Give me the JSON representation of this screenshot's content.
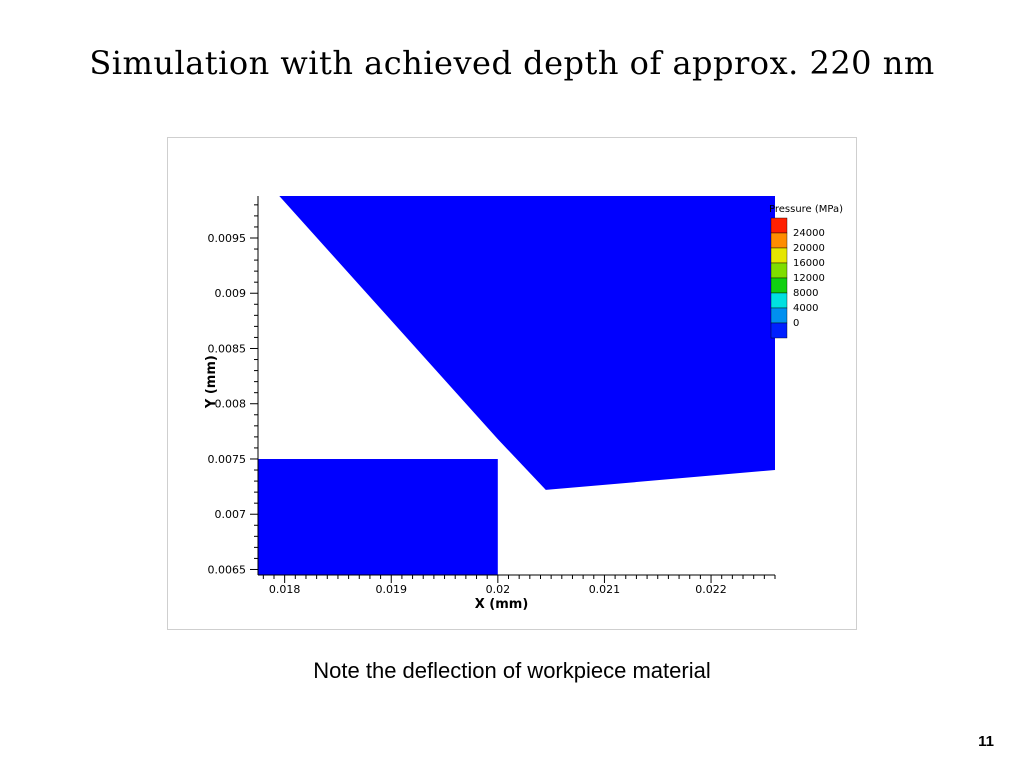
{
  "slide": {
    "title": "Simulation with achieved depth of approx. 220 nm",
    "caption": "Note the deflection of workpiece material",
    "page_number": "11"
  },
  "chart_data": {
    "type": "contour",
    "xlabel": "X (mm)",
    "ylabel": "Y (mm)",
    "xlim": [
      0.01775,
      0.0226
    ],
    "ylim": [
      0.00645,
      0.00988
    ],
    "x_ticks": [
      0.018,
      0.019,
      0.02,
      0.021,
      0.022
    ],
    "x_tick_labels": [
      "0.018",
      "0.019",
      "0.02",
      "0.021",
      "0.022"
    ],
    "y_ticks": [
      0.0065,
      0.007,
      0.0075,
      0.008,
      0.0085,
      0.009,
      0.0095
    ],
    "y_tick_labels": [
      "0.0065",
      "0.007",
      "0.0075",
      "0.008",
      "0.0085",
      "0.009",
      "0.0095"
    ],
    "legend": {
      "title": "Pressure (MPa)",
      "placement": "top-right",
      "levels": [
        {
          "label": "24000",
          "color": "#ff2000"
        },
        {
          "label": "20000",
          "color": "#ff8c00"
        },
        {
          "label": "16000",
          "color": "#e6e600"
        },
        {
          "label": "12000",
          "color": "#7fdd00"
        },
        {
          "label": "8000",
          "color": "#10d010"
        },
        {
          "label": "4000",
          "color": "#00e0e0"
        },
        {
          "label": "0",
          "color": "#0090f0"
        },
        {
          "label": "",
          "color": "#0020ff"
        }
      ]
    },
    "regions": [
      {
        "name": "tool",
        "color": "#0000ff",
        "polygon": [
          [
            0.01795,
            0.00988
          ],
          [
            0.0226,
            0.00988
          ],
          [
            0.0226,
            0.0074
          ],
          [
            0.02045,
            0.00722
          ],
          [
            0.02,
            0.00768
          ]
        ]
      },
      {
        "name": "workpiece",
        "color": "#0000ff",
        "polygon": [
          [
            0.01775,
            0.0075
          ],
          [
            0.02,
            0.0075
          ],
          [
            0.02,
            0.00645
          ],
          [
            0.01775,
            0.00645
          ]
        ]
      }
    ]
  }
}
